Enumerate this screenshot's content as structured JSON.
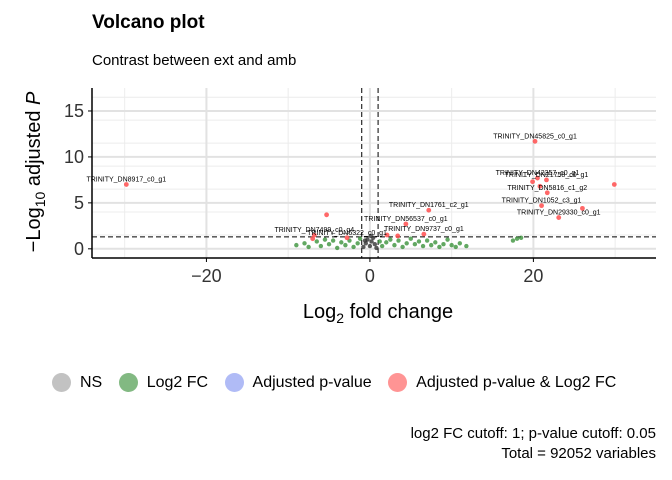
{
  "chart_data": {
    "type": "scatter",
    "title": "Volcano plot",
    "subtitle": "Contrast between ext and amb",
    "xlabel_main": "Log",
    "xlabel_sub": "2",
    "xlabel_rest": " fold change",
    "ylabel_prefix": "−Log",
    "ylabel_sub": "10",
    "ylabel_rest": " adjusted ",
    "ylabel_italic": "P",
    "xlim": [
      -34,
      35
    ],
    "ylim": [
      -1,
      17.5
    ],
    "xticks": [
      -20,
      0,
      20
    ],
    "xtick_labels": [
      "−20",
      "0",
      "20"
    ],
    "yticks": [
      0,
      5,
      10,
      15
    ],
    "ytick_labels": [
      "0",
      "5",
      "10",
      "15"
    ],
    "grid": true,
    "fc_cutoff": 1,
    "p_cutoff": 0.05,
    "neglog10_p_cutoff": 1.3,
    "colors": {
      "NS": "#9a9a9a",
      "Log2 FC": "#2e8b2e",
      "Adjusted p-value": "#7b8ef0",
      "Adjusted p-value & Log2 FC": "#ff4d4d",
      "dark_points": "#333333"
    },
    "significant_points": [
      {
        "x": -29.8,
        "y": 7.0,
        "label": "TRINITY_DN8917_c0_g1"
      },
      {
        "x": 20.2,
        "y": 11.7,
        "label": "TRINITY_DN45825_c0_g1"
      },
      {
        "x": 20.5,
        "y": 7.7,
        "label": "TRINITY_DN42357_c0_g1"
      },
      {
        "x": 19.9,
        "y": 7.3,
        "label": ""
      },
      {
        "x": 21.6,
        "y": 7.5,
        "label": "TRINITY_DN21758_c0_g1"
      },
      {
        "x": 20.8,
        "y": 6.8,
        "label": ""
      },
      {
        "x": 29.9,
        "y": 7.0,
        "label": ""
      },
      {
        "x": 21.7,
        "y": 6.1,
        "label": "TRINITY_DN5816_c1_g2"
      },
      {
        "x": 21.0,
        "y": 4.7,
        "label": "TRINITY_DN1052_c3_g1"
      },
      {
        "x": 26.0,
        "y": 4.4,
        "label": ""
      },
      {
        "x": 23.1,
        "y": 3.4,
        "label": "TRINITY_DN29330_c0_g1"
      },
      {
        "x": 7.2,
        "y": 4.2,
        "label": "TRINITY_DN1761_c2_g1"
      },
      {
        "x": -5.3,
        "y": 3.7,
        "label": ""
      },
      {
        "x": 4.4,
        "y": 2.7,
        "label": "TRINITY_DN56537_c0_g1"
      },
      {
        "x": 6.6,
        "y": 1.6,
        "label": "TRINITY_DN9737_c0_g1"
      },
      {
        "x": -6.8,
        "y": 1.5,
        "label": "TRINITY_DN7499_c0_g4"
      },
      {
        "x": -2.8,
        "y": 1.2,
        "label": "TRINITY_DN6322_c0_g1"
      },
      {
        "x": -7.0,
        "y": 1.1,
        "label": ""
      },
      {
        "x": 3.4,
        "y": 1.4,
        "label": ""
      },
      {
        "x": 2.1,
        "y": 1.5,
        "label": ""
      }
    ],
    "fc_only_points": [
      {
        "x": -9.0,
        "y": 0.4
      },
      {
        "x": -8.0,
        "y": 0.6
      },
      {
        "x": -7.5,
        "y": 0.2
      },
      {
        "x": -6.5,
        "y": 0.8
      },
      {
        "x": -6.0,
        "y": 0.3
      },
      {
        "x": -5.5,
        "y": 1.0
      },
      {
        "x": -5.0,
        "y": 0.5
      },
      {
        "x": -4.5,
        "y": 0.9
      },
      {
        "x": -4.0,
        "y": 0.1
      },
      {
        "x": -3.5,
        "y": 0.7
      },
      {
        "x": -3.0,
        "y": 0.4
      },
      {
        "x": -2.5,
        "y": 0.9
      },
      {
        "x": -2.0,
        "y": 0.2
      },
      {
        "x": -1.5,
        "y": 0.6
      },
      {
        "x": -1.2,
        "y": 1.1
      },
      {
        "x": 1.2,
        "y": 0.8
      },
      {
        "x": 1.5,
        "y": 0.3
      },
      {
        "x": 2.0,
        "y": 0.7
      },
      {
        "x": 2.5,
        "y": 1.0
      },
      {
        "x": 3.0,
        "y": 0.4
      },
      {
        "x": 3.5,
        "y": 0.9
      },
      {
        "x": 4.0,
        "y": 0.2
      },
      {
        "x": 4.5,
        "y": 0.6
      },
      {
        "x": 5.0,
        "y": 1.1
      },
      {
        "x": 5.5,
        "y": 0.5
      },
      {
        "x": 6.0,
        "y": 0.8
      },
      {
        "x": 6.5,
        "y": 0.3
      },
      {
        "x": 7.0,
        "y": 0.9
      },
      {
        "x": 7.5,
        "y": 0.4
      },
      {
        "x": 8.0,
        "y": 0.7
      },
      {
        "x": 8.5,
        "y": 0.2
      },
      {
        "x": 9.0,
        "y": 0.5
      },
      {
        "x": 9.5,
        "y": 1.0
      },
      {
        "x": 10.0,
        "y": 0.4
      },
      {
        "x": 10.5,
        "y": 0.2
      },
      {
        "x": 11.0,
        "y": 0.6
      },
      {
        "x": 17.5,
        "y": 0.9
      },
      {
        "x": 18.0,
        "y": 1.1
      },
      {
        "x": 18.5,
        "y": 1.2
      },
      {
        "x": 11.8,
        "y": 0.3
      }
    ],
    "ns_points": [
      {
        "x": -0.8,
        "y": 0.2
      },
      {
        "x": -0.5,
        "y": 0.6
      },
      {
        "x": -0.3,
        "y": 1.0
      },
      {
        "x": 0.0,
        "y": 0.3
      },
      {
        "x": 0.2,
        "y": 0.8
      },
      {
        "x": 0.4,
        "y": 1.2
      },
      {
        "x": 0.6,
        "y": 0.5
      },
      {
        "x": 0.8,
        "y": 0.1
      },
      {
        "x": -0.6,
        "y": 0.9
      },
      {
        "x": 0.1,
        "y": 1.4
      }
    ]
  },
  "legend": {
    "items": [
      {
        "label": "NS",
        "color": "#9a9a9a"
      },
      {
        "label": "Log2 FC",
        "color": "#2e8b2e"
      },
      {
        "label": "Adjusted p-value",
        "color": "#7b8ef0"
      },
      {
        "label": "Adjusted p-value & Log2 FC",
        "color": "#ff4d4d"
      }
    ]
  },
  "caption": {
    "line1": "log2 FC cutoff: 1; p-value cutoff: 0.05",
    "line2": "Total = 92052 variables"
  }
}
